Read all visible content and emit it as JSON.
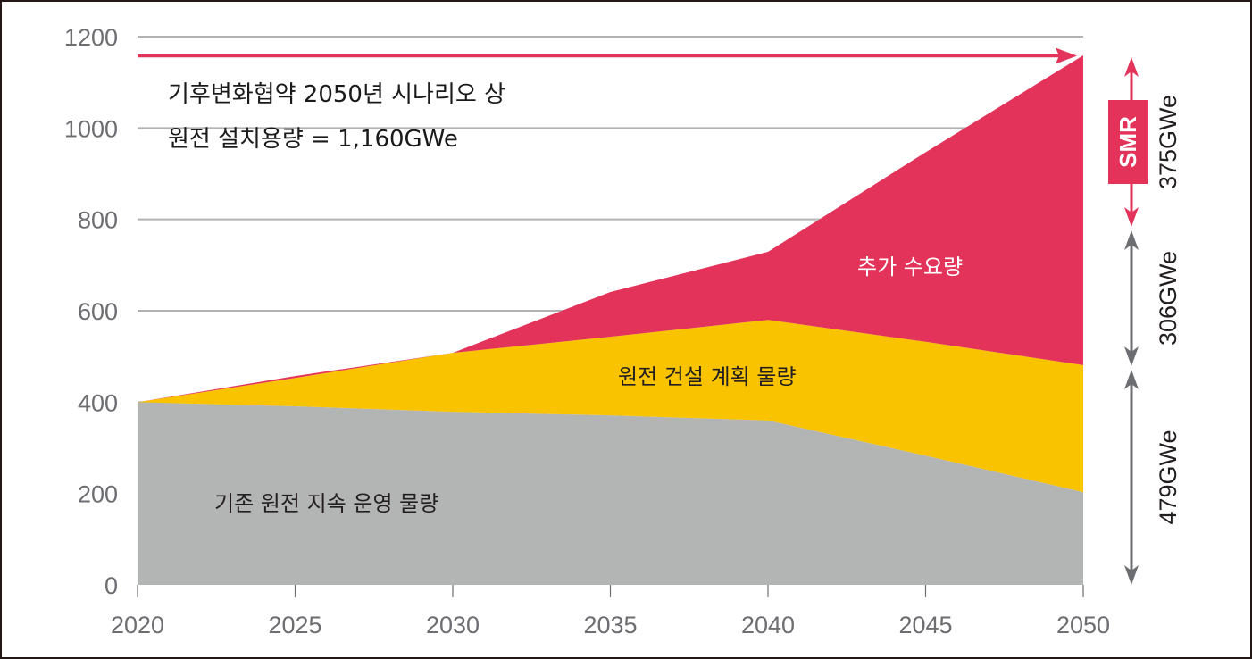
{
  "chart_data": {
    "type": "area",
    "stacked": true,
    "title": "",
    "xlabel": "",
    "ylabel": "",
    "x": [
      2020,
      2025,
      2030,
      2035,
      2040,
      2045,
      2050
    ],
    "x_tick_labels": [
      "2020",
      "2025",
      "2030",
      "2035",
      "2040",
      "2045",
      "2050"
    ],
    "y_ticks": [
      0,
      200,
      400,
      600,
      800,
      1000,
      1200
    ],
    "y_tick_labels": [
      "0",
      "200",
      "400",
      "600",
      "800",
      "1000",
      "1200"
    ],
    "ylim": [
      0,
      1200
    ],
    "xlim": [
      2020,
      2050
    ],
    "grid": "horizontal",
    "series": [
      {
        "name": "기존 원전 지속 운영 물량",
        "color": "#b3b4b4",
        "label_color": "#231f20",
        "values": [
          400,
          391,
          379,
          371,
          360,
          283,
          203
        ]
      },
      {
        "name": "원전 건설 계획 물량",
        "color": "#f9c300",
        "label_color": "#231f20",
        "values": [
          0,
          62,
          129,
          172,
          220,
          249,
          278
        ]
      },
      {
        "name": "추가 수요량",
        "color": "#e4335a",
        "label_color": "#ffffff",
        "values": [
          0,
          4,
          0,
          98,
          149,
          415,
          678
        ]
      }
    ],
    "cumulative_top": [
      400,
      457,
      508,
      641,
      729,
      947,
      1159
    ],
    "annotations": {
      "scenario_line": {
        "value": 1160,
        "color": "#e4335a",
        "text_line1": "기후변화협약 2050년 시나리오 상",
        "text_line2": "원전 설치용량 = 1,160GWe"
      },
      "brackets": [
        {
          "label": "375GWe",
          "from": 785,
          "to": 1160,
          "color": "#e4335a",
          "badge": "SMR"
        },
        {
          "label": "306GWe",
          "from": 479,
          "to": 785,
          "color": "#6d6e71"
        },
        {
          "label": "479GWe",
          "from": 0,
          "to": 479,
          "color": "#6d6e71"
        }
      ]
    }
  }
}
